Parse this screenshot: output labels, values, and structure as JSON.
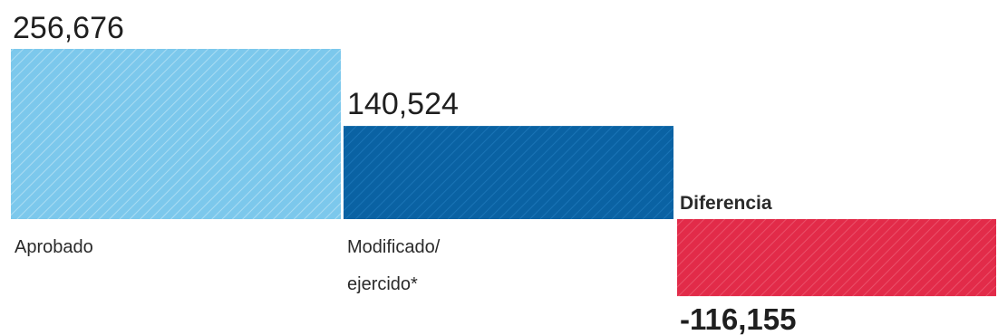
{
  "chart_data": {
    "type": "bar",
    "categories": [
      "Aprobado",
      "Modificado/ ejercido*",
      "Diferencia"
    ],
    "values": [
      256676,
      140524,
      -116155
    ],
    "value_labels": [
      "256,676",
      "140,524",
      "-116,155"
    ],
    "category_labels": [
      [
        "Aprobado"
      ],
      [
        "Modificado/",
        "ejercido*"
      ],
      [
        "Diferencia"
      ]
    ],
    "colors": [
      "#7cc8ec",
      "#0a62a3",
      "#e22b49"
    ],
    "title": "",
    "xlabel": "",
    "ylabel": "",
    "grid": false,
    "legend": "none"
  }
}
